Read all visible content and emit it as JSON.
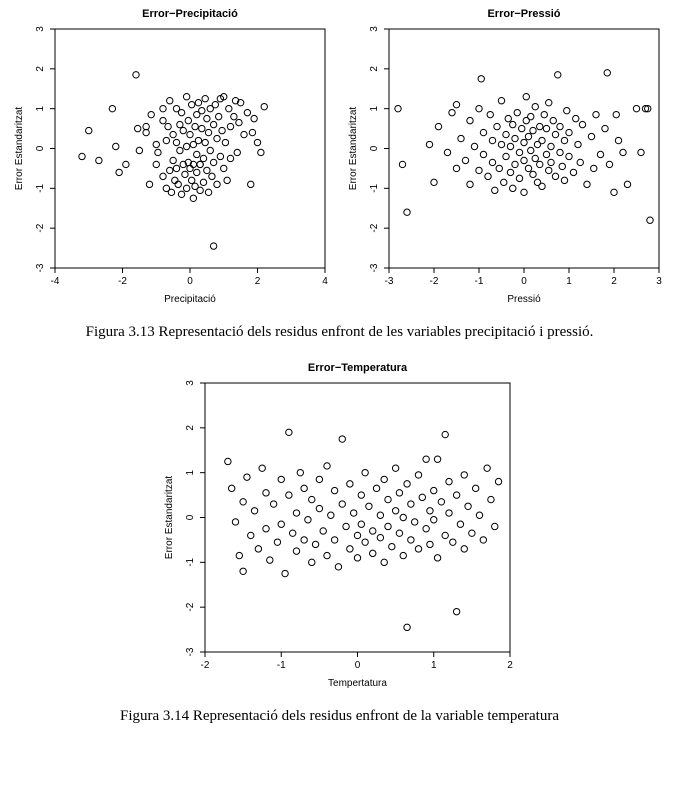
{
  "caption1": "Figura 3.13 Representació dels residus enfront de les variables precipitació i pressió.",
  "caption2": "Figura 3.14 Representació dels residus enfront de la variable temperatura",
  "plots": {
    "precip": {
      "type": "scatter",
      "title": "Error−Precipitació",
      "xlabel": "Precipitació",
      "ylabel": "Error Estandaritzat",
      "xlim": [
        -4,
        4
      ],
      "ylim": [
        -3,
        3
      ],
      "xticks": [
        -4,
        -2,
        0,
        2,
        4
      ],
      "yticks": [
        -3,
        -2,
        -1,
        0,
        1,
        2,
        3
      ],
      "marker": "circle-open",
      "marker_size": 3.2,
      "marker_stroke": "#000000",
      "background_color": "#ffffff",
      "box_color": "#000000",
      "title_fontsize": 11,
      "label_fontsize": 10,
      "tick_fontsize": 10,
      "points": [
        [
          -3.2,
          -0.2
        ],
        [
          -3.0,
          0.45
        ],
        [
          -2.7,
          -0.3
        ],
        [
          -2.3,
          1.0
        ],
        [
          -2.2,
          0.05
        ],
        [
          -2.1,
          -0.6
        ],
        [
          -1.9,
          -0.4
        ],
        [
          -1.6,
          1.85
        ],
        [
          -1.55,
          0.5
        ],
        [
          -1.5,
          -0.05
        ],
        [
          -1.3,
          0.55
        ],
        [
          -1.3,
          0.4
        ],
        [
          -1.2,
          -0.9
        ],
        [
          -1.15,
          0.85
        ],
        [
          -1.0,
          -0.4
        ],
        [
          -1.0,
          0.1
        ],
        [
          -0.95,
          -0.1
        ],
        [
          -0.8,
          0.7
        ],
        [
          -0.8,
          1.0
        ],
        [
          -0.8,
          -0.7
        ],
        [
          -0.7,
          -1.0
        ],
        [
          -0.7,
          0.2
        ],
        [
          -0.65,
          0.55
        ],
        [
          -0.6,
          -0.55
        ],
        [
          -0.6,
          1.2
        ],
        [
          -0.55,
          -1.1
        ],
        [
          -0.5,
          0.35
        ],
        [
          -0.5,
          -0.3
        ],
        [
          -0.45,
          -0.8
        ],
        [
          -0.4,
          1.0
        ],
        [
          -0.4,
          0.15
        ],
        [
          -0.4,
          -0.5
        ],
        [
          -0.35,
          -0.9
        ],
        [
          -0.3,
          0.6
        ],
        [
          -0.3,
          -0.05
        ],
        [
          -0.25,
          -1.15
        ],
        [
          -0.25,
          0.9
        ],
        [
          -0.2,
          -0.4
        ],
        [
          -0.2,
          0.45
        ],
        [
          -0.15,
          -0.65
        ],
        [
          -0.1,
          1.3
        ],
        [
          -0.1,
          0.05
        ],
        [
          -0.1,
          -1.0
        ],
        [
          -0.05,
          0.7
        ],
        [
          -0.05,
          -0.35
        ],
        [
          0.0,
          -0.5
        ],
        [
          0.0,
          0.35
        ],
        [
          0.05,
          -0.8
        ],
        [
          0.05,
          1.1
        ],
        [
          0.1,
          0.1
        ],
        [
          0.1,
          -0.4
        ],
        [
          0.1,
          -1.25
        ],
        [
          0.15,
          0.55
        ],
        [
          0.15,
          -0.95
        ],
        [
          0.2,
          0.85
        ],
        [
          0.2,
          -0.15
        ],
        [
          0.2,
          -0.6
        ],
        [
          0.25,
          1.15
        ],
        [
          0.25,
          0.2
        ],
        [
          0.3,
          -0.4
        ],
        [
          0.3,
          -0.4
        ],
        [
          0.3,
          -1.05
        ],
        [
          0.35,
          0.95
        ],
        [
          0.35,
          0.5
        ],
        [
          0.4,
          -0.25
        ],
        [
          0.4,
          -0.85
        ],
        [
          0.45,
          1.25
        ],
        [
          0.45,
          0.15
        ],
        [
          0.5,
          -0.55
        ],
        [
          0.5,
          0.75
        ],
        [
          0.55,
          -1.1
        ],
        [
          0.55,
          0.4
        ],
        [
          0.6,
          -0.05
        ],
        [
          0.6,
          1.0
        ],
        [
          0.65,
          -0.7
        ],
        [
          0.7,
          0.6
        ],
        [
          0.7,
          -0.35
        ],
        [
          0.7,
          -2.45
        ],
        [
          0.75,
          1.1
        ],
        [
          0.8,
          0.25
        ],
        [
          0.8,
          -0.9
        ],
        [
          0.85,
          0.8
        ],
        [
          0.9,
          -0.2
        ],
        [
          0.9,
          1.25
        ],
        [
          0.95,
          0.45
        ],
        [
          1.0,
          -0.5
        ],
        [
          1.0,
          1.3
        ],
        [
          1.05,
          0.15
        ],
        [
          1.1,
          -0.8
        ],
        [
          1.15,
          1.0
        ],
        [
          1.2,
          0.55
        ],
        [
          1.2,
          -0.25
        ],
        [
          1.3,
          0.8
        ],
        [
          1.35,
          1.2
        ],
        [
          1.4,
          -0.1
        ],
        [
          1.45,
          0.65
        ],
        [
          1.5,
          1.15
        ],
        [
          1.6,
          0.35
        ],
        [
          1.7,
          0.9
        ],
        [
          1.8,
          -0.9
        ],
        [
          1.85,
          0.4
        ],
        [
          1.9,
          0.75
        ],
        [
          2.0,
          0.15
        ],
        [
          2.1,
          -0.1
        ],
        [
          2.2,
          1.05
        ]
      ]
    },
    "pressio": {
      "type": "scatter",
      "title": "Error−Pressió",
      "xlabel": "Pressió",
      "ylabel": "Error Estandaritzat",
      "xlim": [
        -3,
        3
      ],
      "ylim": [
        -3,
        3
      ],
      "xticks": [
        -3,
        -2,
        -1,
        0,
        1,
        2,
        3
      ],
      "yticks": [
        -3,
        -2,
        -1,
        0,
        1,
        2,
        3
      ],
      "marker": "circle-open",
      "marker_size": 3.2,
      "marker_stroke": "#000000",
      "background_color": "#ffffff",
      "box_color": "#000000",
      "title_fontsize": 11,
      "label_fontsize": 10,
      "tick_fontsize": 10,
      "points": [
        [
          -2.8,
          1.0
        ],
        [
          -2.7,
          -0.4
        ],
        [
          -2.6,
          -1.6
        ],
        [
          -2.1,
          0.1
        ],
        [
          -2.0,
          -0.85
        ],
        [
          -1.9,
          0.55
        ],
        [
          -1.7,
          -0.1
        ],
        [
          -1.6,
          0.9
        ],
        [
          -1.5,
          -0.5
        ],
        [
          -1.5,
          1.1
        ],
        [
          -1.4,
          0.25
        ],
        [
          -1.3,
          -0.3
        ],
        [
          -1.2,
          0.7
        ],
        [
          -1.2,
          -0.9
        ],
        [
          -1.1,
          0.05
        ],
        [
          -1.0,
          -0.55
        ],
        [
          -1.0,
          1.0
        ],
        [
          -0.95,
          1.75
        ],
        [
          -0.9,
          0.4
        ],
        [
          -0.9,
          -0.15
        ],
        [
          -0.8,
          -0.7
        ],
        [
          -0.75,
          0.85
        ],
        [
          -0.7,
          -0.35
        ],
        [
          -0.7,
          0.2
        ],
        [
          -0.65,
          -1.05
        ],
        [
          -0.6,
          0.55
        ],
        [
          -0.55,
          -0.5
        ],
        [
          -0.5,
          0.1
        ],
        [
          -0.5,
          1.2
        ],
        [
          -0.45,
          -0.85
        ],
        [
          -0.4,
          0.35
        ],
        [
          -0.4,
          -0.2
        ],
        [
          -0.35,
          0.75
        ],
        [
          -0.3,
          -0.6
        ],
        [
          -0.3,
          0.05
        ],
        [
          -0.25,
          -1.0
        ],
        [
          -0.25,
          0.6
        ],
        [
          -0.2,
          0.25
        ],
        [
          -0.2,
          -0.4
        ],
        [
          -0.15,
          0.9
        ],
        [
          -0.1,
          -0.1
        ],
        [
          -0.1,
          -0.75
        ],
        [
          -0.05,
          0.5
        ],
        [
          0.0,
          -0.3
        ],
        [
          0.0,
          0.15
        ],
        [
          0.0,
          -1.1
        ],
        [
          0.05,
          0.7
        ],
        [
          0.05,
          1.3
        ],
        [
          0.1,
          -0.5
        ],
        [
          0.1,
          0.3
        ],
        [
          0.15,
          -0.05
        ],
        [
          0.15,
          0.8
        ],
        [
          0.2,
          -0.65
        ],
        [
          0.2,
          0.45
        ],
        [
          0.25,
          -0.25
        ],
        [
          0.25,
          1.05
        ],
        [
          0.3,
          0.1
        ],
        [
          0.3,
          -0.85
        ],
        [
          0.35,
          0.55
        ],
        [
          0.35,
          -0.4
        ],
        [
          0.4,
          0.2
        ],
        [
          0.4,
          -0.95
        ],
        [
          0.45,
          0.85
        ],
        [
          0.5,
          -0.15
        ],
        [
          0.5,
          0.5
        ],
        [
          0.55,
          -0.55
        ],
        [
          0.55,
          1.15
        ],
        [
          0.6,
          0.05
        ],
        [
          0.6,
          -0.35
        ],
        [
          0.65,
          0.7
        ],
        [
          0.7,
          -0.7
        ],
        [
          0.7,
          0.35
        ],
        [
          0.75,
          1.85
        ],
        [
          0.8,
          -0.1
        ],
        [
          0.8,
          0.55
        ],
        [
          0.85,
          -0.45
        ],
        [
          0.9,
          0.2
        ],
        [
          0.9,
          -0.8
        ],
        [
          0.95,
          0.95
        ],
        [
          1.0,
          0.4
        ],
        [
          1.0,
          -0.2
        ],
        [
          1.1,
          -0.6
        ],
        [
          1.15,
          0.75
        ],
        [
          1.2,
          0.1
        ],
        [
          1.25,
          -0.35
        ],
        [
          1.3,
          0.6
        ],
        [
          1.4,
          -0.9
        ],
        [
          1.5,
          0.3
        ],
        [
          1.55,
          -0.5
        ],
        [
          1.6,
          0.85
        ],
        [
          1.7,
          -0.15
        ],
        [
          1.8,
          0.5
        ],
        [
          1.85,
          1.9
        ],
        [
          1.9,
          -0.4
        ],
        [
          2.0,
          -1.1
        ],
        [
          2.05,
          0.85
        ],
        [
          2.1,
          0.2
        ],
        [
          2.2,
          -0.1
        ],
        [
          2.3,
          -0.9
        ],
        [
          2.5,
          1.0
        ],
        [
          2.6,
          -0.1
        ],
        [
          2.7,
          1.0
        ],
        [
          2.75,
          1.0
        ],
        [
          2.8,
          -1.8
        ]
      ]
    },
    "temp": {
      "type": "scatter",
      "title": "Error−Temperatura",
      "xlabel": "Tempertatura",
      "ylabel": "Error Estandaritzat",
      "xlim": [
        -2,
        2
      ],
      "ylim": [
        -3,
        3
      ],
      "xticks": [
        -2,
        -1,
        0,
        1,
        2
      ],
      "yticks": [
        -3,
        -2,
        -1,
        0,
        1,
        2,
        3
      ],
      "marker": "circle-open",
      "marker_size": 3.2,
      "marker_stroke": "#000000",
      "background_color": "#ffffff",
      "box_color": "#000000",
      "title_fontsize": 11,
      "label_fontsize": 10,
      "tick_fontsize": 10,
      "points": [
        [
          -1.7,
          1.25
        ],
        [
          -1.65,
          0.65
        ],
        [
          -1.6,
          -0.1
        ],
        [
          -1.55,
          -0.85
        ],
        [
          -1.5,
          0.35
        ],
        [
          -1.5,
          -1.2
        ],
        [
          -1.45,
          0.9
        ],
        [
          -1.4,
          -0.4
        ],
        [
          -1.35,
          0.15
        ],
        [
          -1.3,
          -0.7
        ],
        [
          -1.25,
          1.1
        ],
        [
          -1.2,
          -0.25
        ],
        [
          -1.2,
          0.55
        ],
        [
          -1.15,
          -0.95
        ],
        [
          -1.1,
          0.3
        ],
        [
          -1.05,
          -0.55
        ],
        [
          -1.0,
          0.85
        ],
        [
          -1.0,
          -0.15
        ],
        [
          -0.95,
          -1.25
        ],
        [
          -0.9,
          0.5
        ],
        [
          -0.9,
          1.9
        ],
        [
          -0.85,
          -0.35
        ],
        [
          -0.8,
          0.1
        ],
        [
          -0.8,
          -0.75
        ],
        [
          -0.75,
          1.0
        ],
        [
          -0.7,
          -0.5
        ],
        [
          -0.7,
          0.65
        ],
        [
          -0.65,
          -0.05
        ],
        [
          -0.6,
          -1.0
        ],
        [
          -0.6,
          0.4
        ],
        [
          -0.55,
          -0.6
        ],
        [
          -0.5,
          0.85
        ],
        [
          -0.5,
          0.2
        ],
        [
          -0.45,
          -0.3
        ],
        [
          -0.4,
          -0.85
        ],
        [
          -0.4,
          1.15
        ],
        [
          -0.35,
          0.05
        ],
        [
          -0.3,
          -0.5
        ],
        [
          -0.3,
          0.6
        ],
        [
          -0.25,
          -1.1
        ],
        [
          -0.2,
          1.75
        ],
        [
          -0.2,
          0.3
        ],
        [
          -0.15,
          -0.2
        ],
        [
          -0.1,
          -0.7
        ],
        [
          -0.1,
          0.75
        ],
        [
          -0.05,
          0.1
        ],
        [
          0.0,
          -0.4
        ],
        [
          0.0,
          -0.9
        ],
        [
          0.05,
          0.5
        ],
        [
          0.05,
          -0.15
        ],
        [
          0.1,
          1.0
        ],
        [
          0.1,
          -0.55
        ],
        [
          0.15,
          0.25
        ],
        [
          0.2,
          -0.3
        ],
        [
          0.2,
          -0.8
        ],
        [
          0.25,
          0.65
        ],
        [
          0.3,
          0.05
        ],
        [
          0.3,
          -0.45
        ],
        [
          0.35,
          -1.0
        ],
        [
          0.35,
          0.85
        ],
        [
          0.4,
          0.4
        ],
        [
          0.4,
          -0.2
        ],
        [
          0.45,
          -0.65
        ],
        [
          0.5,
          0.15
        ],
        [
          0.5,
          1.1
        ],
        [
          0.55,
          -0.35
        ],
        [
          0.55,
          0.55
        ],
        [
          0.6,
          -0.85
        ],
        [
          0.6,
          0.0
        ],
        [
          0.65,
          -2.45
        ],
        [
          0.65,
          0.75
        ],
        [
          0.7,
          0.3
        ],
        [
          0.7,
          -0.5
        ],
        [
          0.75,
          -0.1
        ],
        [
          0.8,
          0.95
        ],
        [
          0.8,
          -0.7
        ],
        [
          0.85,
          0.45
        ],
        [
          0.9,
          1.3
        ],
        [
          0.9,
          -0.25
        ],
        [
          0.95,
          0.15
        ],
        [
          0.95,
          -0.6
        ],
        [
          1.0,
          0.6
        ],
        [
          1.0,
          -0.05
        ],
        [
          1.05,
          -0.9
        ],
        [
          1.05,
          1.3
        ],
        [
          1.1,
          0.35
        ],
        [
          1.15,
          -0.4
        ],
        [
          1.15,
          1.85
        ],
        [
          1.2,
          0.8
        ],
        [
          1.2,
          0.1
        ],
        [
          1.25,
          -0.55
        ],
        [
          1.3,
          -2.1
        ],
        [
          1.3,
          0.5
        ],
        [
          1.35,
          -0.15
        ],
        [
          1.4,
          0.95
        ],
        [
          1.4,
          -0.7
        ],
        [
          1.45,
          0.25
        ],
        [
          1.5,
          -0.35
        ],
        [
          1.55,
          0.65
        ],
        [
          1.6,
          0.05
        ],
        [
          1.65,
          -0.5
        ],
        [
          1.7,
          1.1
        ],
        [
          1.75,
          0.4
        ],
        [
          1.8,
          -0.2
        ],
        [
          1.85,
          0.8
        ]
      ]
    }
  }
}
